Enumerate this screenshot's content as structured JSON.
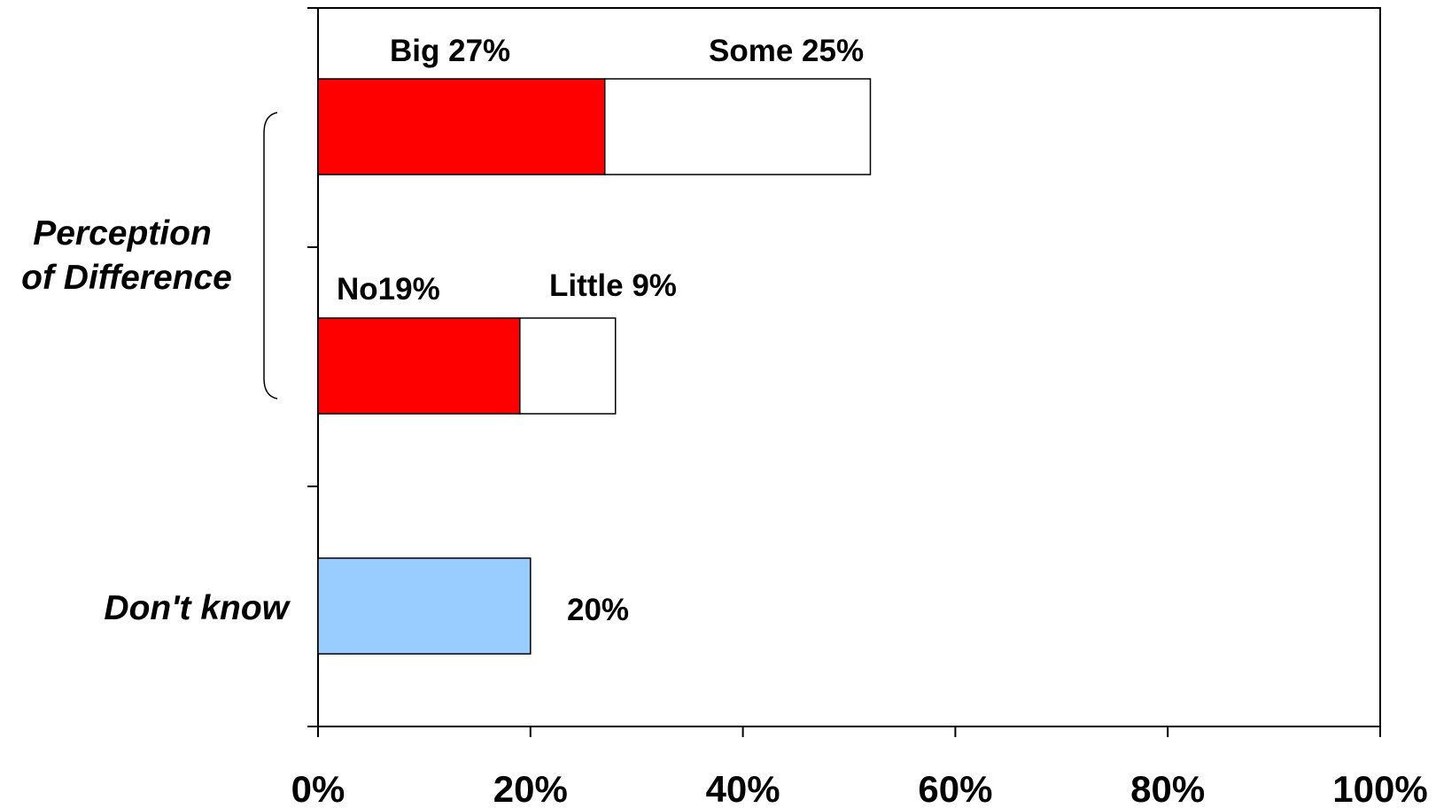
{
  "chart_data": {
    "type": "bar",
    "orientation": "horizontal",
    "stacked": true,
    "x_axis": {
      "range": [
        0,
        100
      ],
      "ticks": [
        0,
        20,
        40,
        60,
        80,
        100
      ],
      "tick_labels": [
        "0%",
        "20%",
        "40%",
        "60%",
        "80%",
        "100%"
      ]
    },
    "grid": false,
    "legend": "none",
    "group_label_line1": "Perception",
    "group_label_line2": "of Difference",
    "bars": [
      {
        "segments": [
          {
            "label": "Big 27%",
            "value": 27,
            "color": "#ff0000"
          },
          {
            "label": "Some 25%",
            "value": 25,
            "color": "#ffffff"
          }
        ]
      },
      {
        "segments": [
          {
            "label": "No19%",
            "value": 19,
            "color": "#ff0000"
          },
          {
            "label": "Little 9%",
            "value": 9,
            "color": "#ffffff"
          }
        ]
      },
      {
        "category": "Don't know",
        "segments": [
          {
            "label": "20%",
            "value": 20,
            "color": "#99ccff"
          }
        ]
      }
    ]
  }
}
